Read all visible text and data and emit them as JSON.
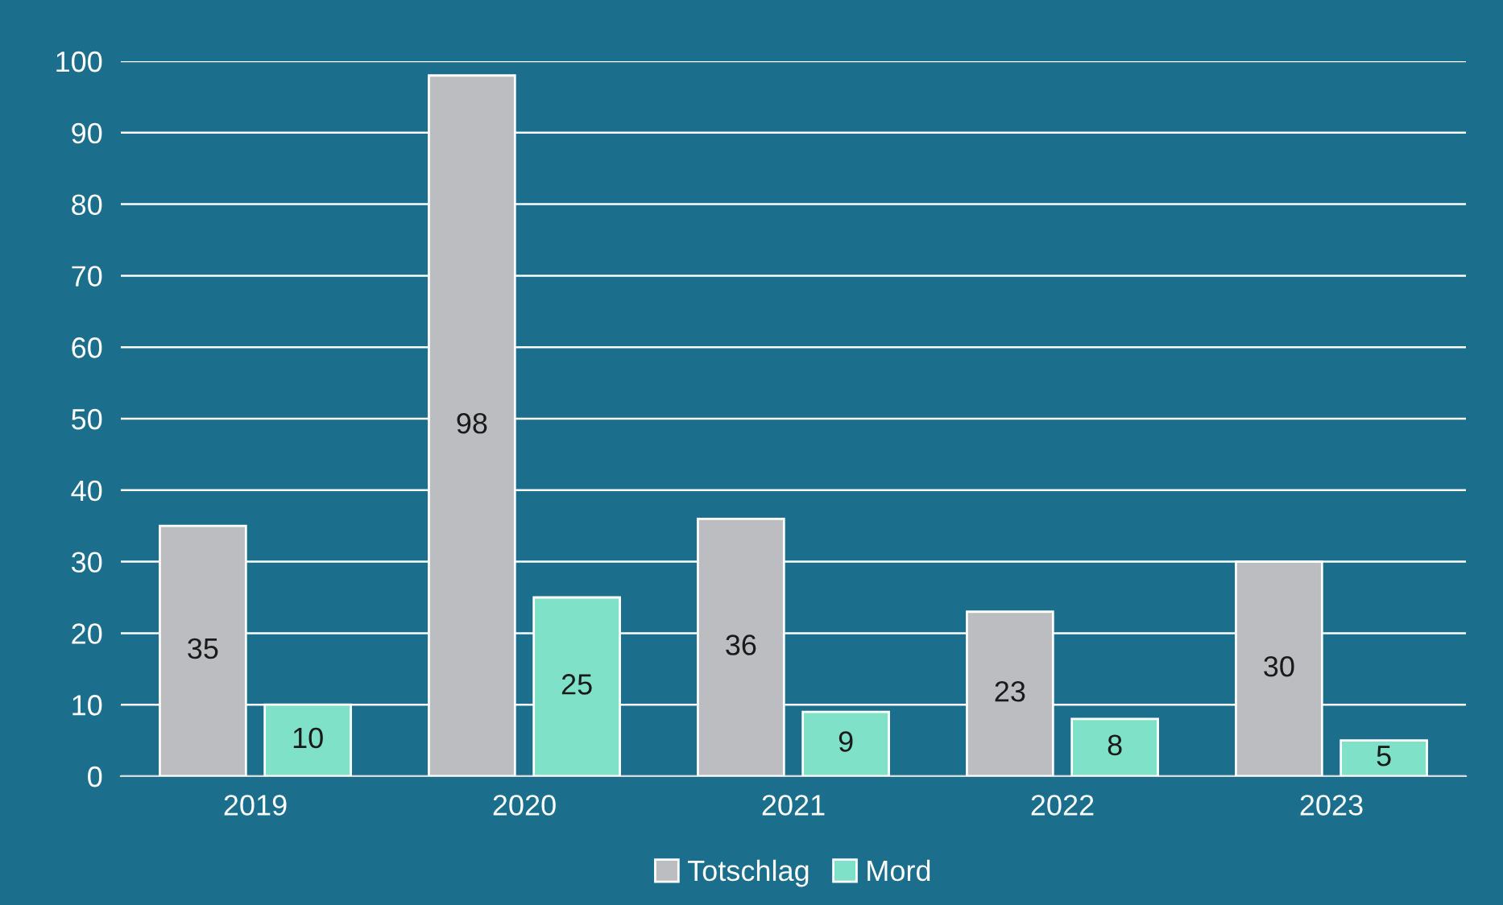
{
  "chart_data": {
    "type": "bar",
    "categories": [
      "2019",
      "2020",
      "2021",
      "2022",
      "2023"
    ],
    "series": [
      {
        "name": "Totschlag",
        "color": "#bcbdc0",
        "values": [
          35,
          98,
          36,
          23,
          30
        ]
      },
      {
        "name": "Mord",
        "color": "#7fe1c8",
        "values": [
          10,
          25,
          9,
          8,
          5
        ]
      }
    ],
    "ylim": [
      0,
      100
    ],
    "yticks": [
      0,
      10,
      20,
      30,
      40,
      50,
      60,
      70,
      80,
      90,
      100
    ],
    "grid": "y",
    "legend": "bottom",
    "data_labels": true
  }
}
